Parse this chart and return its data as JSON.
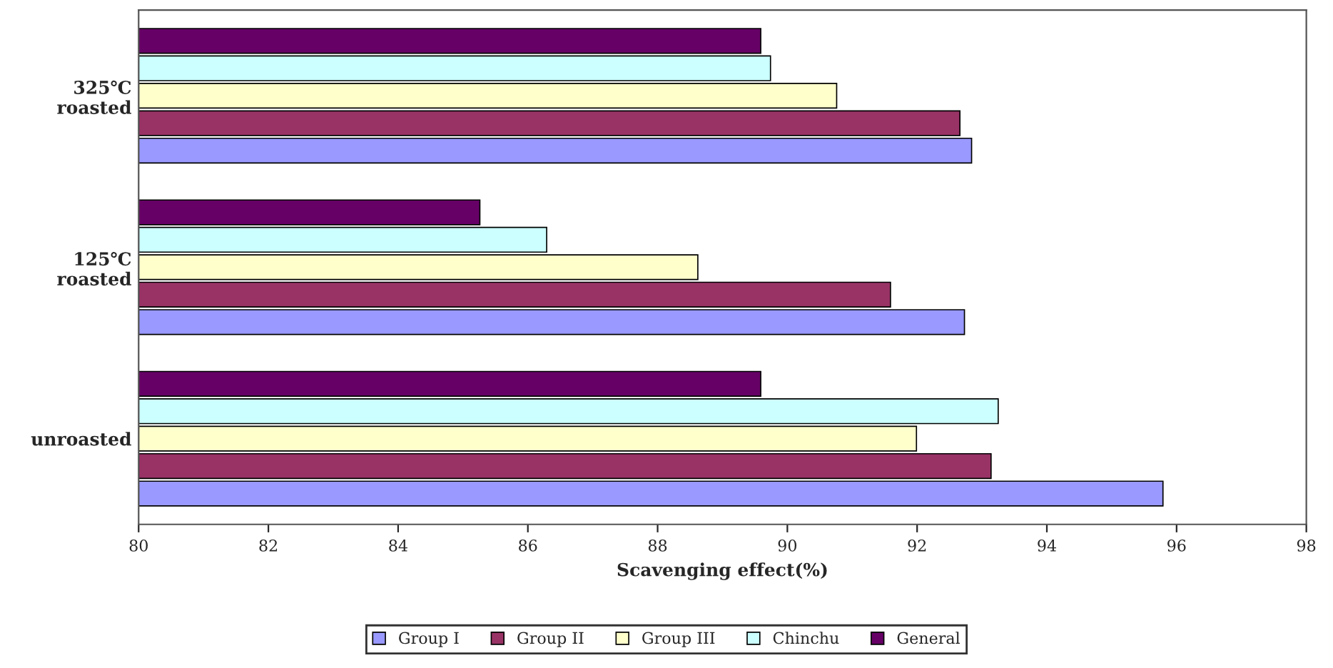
{
  "chart_data": {
    "type": "bar",
    "orientation": "horizontal",
    "xlabel": "Scavenging effect(%)",
    "categories": [
      "325℃\nroasted",
      "125℃\nroasted",
      "unroasted"
    ],
    "series": [
      {
        "name": "Group I",
        "color": "#9999ff",
        "values": [
          92.84,
          92.73,
          95.79
        ]
      },
      {
        "name": "Group II",
        "color": "#993366",
        "values": [
          92.66,
          91.59,
          93.14
        ]
      },
      {
        "name": "Group III",
        "color": "#ffffcc",
        "values": [
          90.76,
          88.62,
          91.99
        ]
      },
      {
        "name": "Chinchu",
        "color": "#ccffff",
        "values": [
          89.74,
          86.29,
          93.25
        ]
      },
      {
        "name": "General",
        "color": "#660066",
        "values": [
          89.59,
          85.26,
          89.59
        ]
      }
    ],
    "xlim": [
      80,
      98
    ],
    "xticks": [
      80,
      82,
      84,
      86,
      88,
      90,
      92,
      94,
      96,
      98
    ],
    "grid": false,
    "legend": "bottom"
  }
}
